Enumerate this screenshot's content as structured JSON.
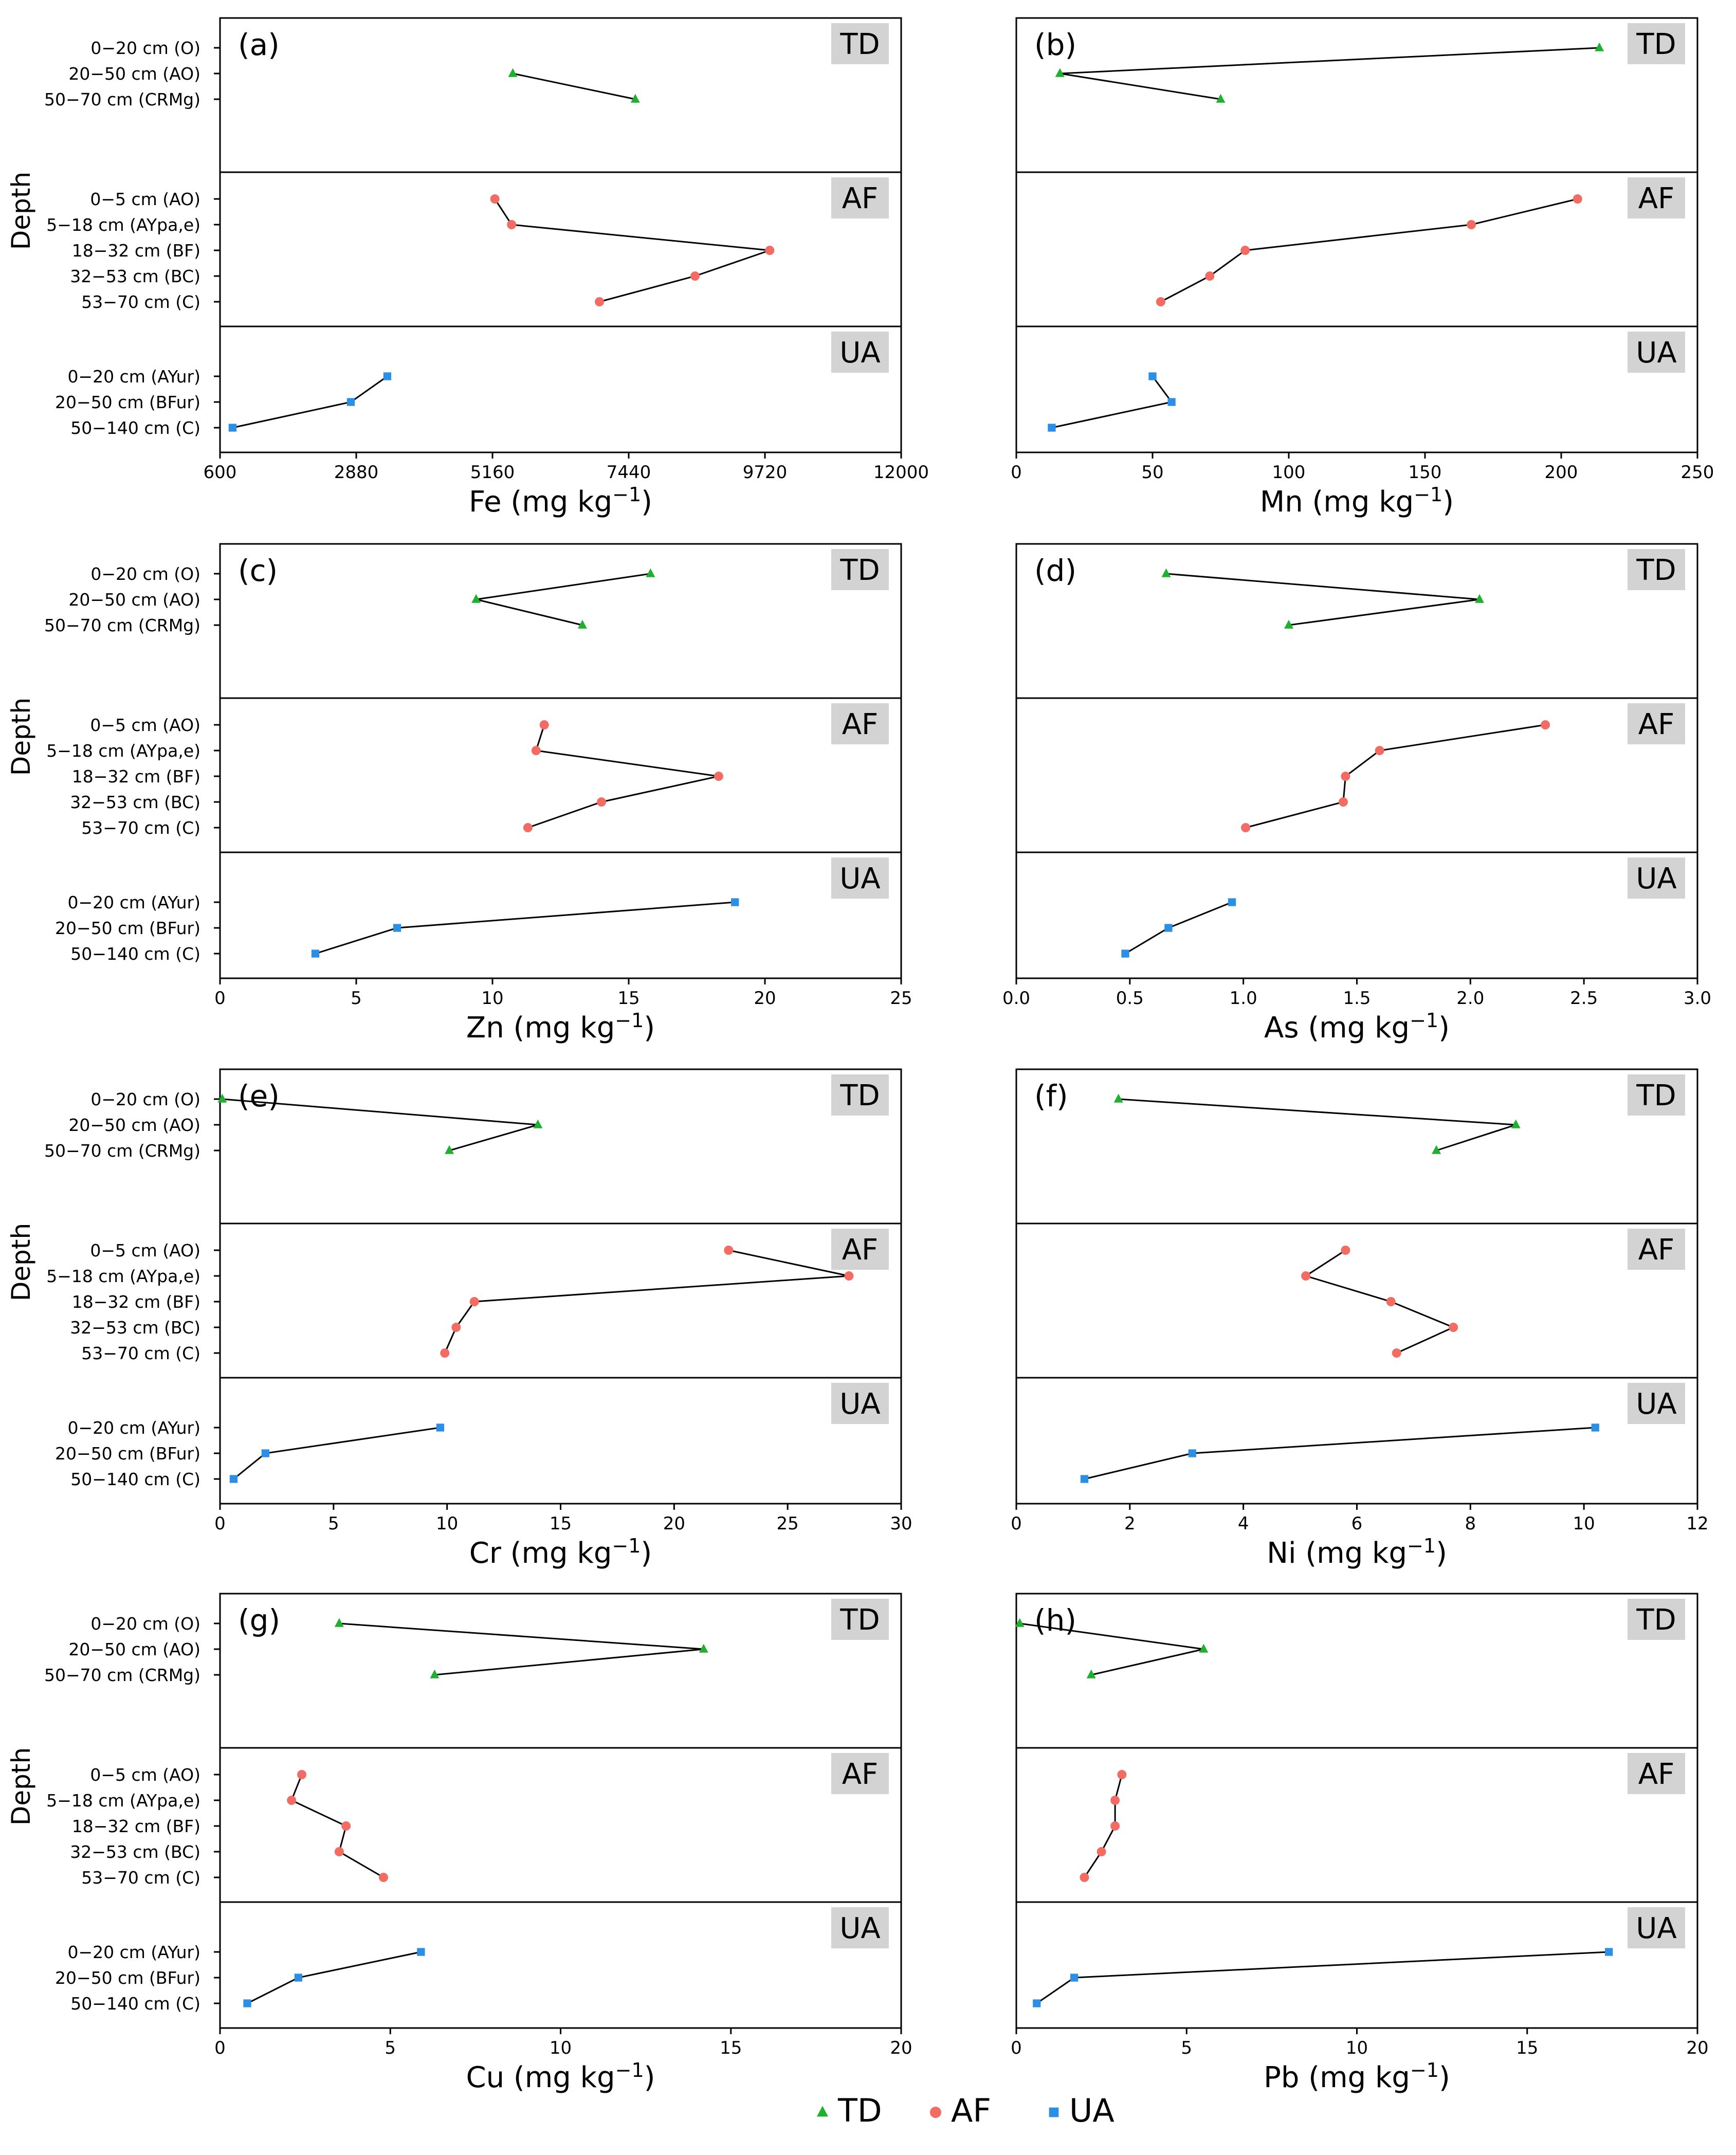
{
  "legend": [
    {
      "label": "TD",
      "marker": "triangle",
      "color": "#1fb030"
    },
    {
      "label": "AF",
      "marker": "circle",
      "color": "#f26c64"
    },
    {
      "label": "UA",
      "marker": "square",
      "color": "#2b8fe6"
    }
  ],
  "colors": {
    "TD": "#1fb030",
    "AF": "#f26c64",
    "UA": "#2b8fe6"
  },
  "groups": [
    {
      "name": "TD",
      "depths": [
        "0−20 cm (O)",
        "20−50 cm (AO)",
        "50−70 cm (CRMg)"
      ]
    },
    {
      "name": "AF",
      "depths": [
        "0−5 cm (AO)",
        "5−18 cm (AYpa,e)",
        "18−32 cm (BF)",
        "32−53 cm (BC)",
        "53−70 cm (C)"
      ]
    },
    {
      "name": "UA",
      "depths": [
        "0−20 cm (AYur)",
        "20−50 cm (BFur)",
        "50−140 cm (C)"
      ]
    }
  ],
  "chart_data": [
    {
      "type": "line",
      "panel": "(a)",
      "element": "Fe",
      "xlabel": "Fe (mg kg⁻¹)",
      "ylabel": "Depth",
      "xlim": [
        600,
        12000
      ],
      "xticks": [
        600,
        2880,
        5160,
        7440,
        9720,
        12000
      ],
      "series": [
        {
          "name": "TD",
          "values": [
            null,
            5500,
            7550
          ]
        },
        {
          "name": "AF",
          "values": [
            5200,
            5480,
            9800,
            8550,
            6950
          ]
        },
        {
          "name": "UA",
          "values": [
            3400,
            2790,
            810
          ]
        }
      ]
    },
    {
      "type": "line",
      "panel": "(b)",
      "element": "Mn",
      "xlabel": "Mn (mg kg⁻¹)",
      "ylabel": "",
      "xlim": [
        0,
        250
      ],
      "xticks": [
        0,
        50,
        100,
        150,
        200,
        250
      ],
      "series": [
        {
          "name": "TD",
          "values": [
            214,
            16,
            75
          ]
        },
        {
          "name": "AF",
          "values": [
            206,
            167,
            84,
            71,
            53
          ]
        },
        {
          "name": "UA",
          "values": [
            50,
            57,
            13
          ]
        }
      ]
    },
    {
      "type": "line",
      "panel": "(c)",
      "element": "Zn",
      "xlabel": "Zn (mg kg⁻¹)",
      "ylabel": "Depth",
      "xlim": [
        0,
        25
      ],
      "xticks": [
        0,
        5,
        10,
        15,
        20,
        25
      ],
      "series": [
        {
          "name": "TD",
          "values": [
            15.8,
            9.4,
            13.3
          ]
        },
        {
          "name": "AF",
          "values": [
            11.9,
            11.6,
            18.3,
            14.0,
            11.3
          ]
        },
        {
          "name": "UA",
          "values": [
            18.9,
            6.5,
            3.5
          ]
        }
      ]
    },
    {
      "type": "line",
      "panel": "(d)",
      "element": "As",
      "xlabel": "As (mg kg⁻¹)",
      "ylabel": "",
      "xlim": [
        0.0,
        3.0
      ],
      "xticks": [
        0.0,
        0.5,
        1.0,
        1.5,
        2.0,
        2.5,
        3.0
      ],
      "series": [
        {
          "name": "TD",
          "values": [
            0.66,
            2.04,
            1.2
          ]
        },
        {
          "name": "AF",
          "values": [
            2.33,
            1.6,
            1.45,
            1.44,
            1.01
          ]
        },
        {
          "name": "UA",
          "values": [
            0.95,
            0.67,
            0.48
          ]
        }
      ]
    },
    {
      "type": "line",
      "panel": "(e)",
      "element": "Cr",
      "xlabel": "Cr (mg kg⁻¹)",
      "ylabel": "Depth",
      "xlim": [
        0,
        30
      ],
      "xticks": [
        0,
        5,
        10,
        15,
        20,
        25,
        30
      ],
      "series": [
        {
          "name": "TD",
          "values": [
            0.1,
            14.0,
            10.1
          ]
        },
        {
          "name": "AF",
          "values": [
            22.4,
            27.7,
            11.2,
            10.4,
            9.9
          ]
        },
        {
          "name": "UA",
          "values": [
            9.7,
            2.0,
            0.6
          ]
        }
      ]
    },
    {
      "type": "line",
      "panel": "(f)",
      "element": "Ni",
      "xlabel": "Ni (mg kg⁻¹)",
      "ylabel": "",
      "xlim": [
        0,
        12
      ],
      "xticks": [
        0,
        2,
        4,
        6,
        8,
        10,
        12
      ],
      "series": [
        {
          "name": "TD",
          "values": [
            1.8,
            8.8,
            7.4
          ]
        },
        {
          "name": "AF",
          "values": [
            5.8,
            5.1,
            6.6,
            7.7,
            6.7
          ]
        },
        {
          "name": "UA",
          "values": [
            10.2,
            3.1,
            1.2
          ]
        }
      ]
    },
    {
      "type": "line",
      "panel": "(g)",
      "element": "Cu",
      "xlabel": "Cu (mg kg⁻¹)",
      "ylabel": "Depth",
      "xlim": [
        0,
        20
      ],
      "xticks": [
        0,
        5,
        10,
        15,
        20
      ],
      "series": [
        {
          "name": "TD",
          "values": [
            3.5,
            14.2,
            6.3
          ]
        },
        {
          "name": "AF",
          "values": [
            2.4,
            2.1,
            3.7,
            3.5,
            4.8
          ]
        },
        {
          "name": "UA",
          "values": [
            5.9,
            2.3,
            0.8
          ]
        }
      ]
    },
    {
      "type": "line",
      "panel": "(h)",
      "element": "Pb",
      "xlabel": "Pb (mg kg⁻¹)",
      "ylabel": "",
      "xlim": [
        0,
        20
      ],
      "xticks": [
        0,
        5,
        10,
        15,
        20
      ],
      "series": [
        {
          "name": "TD",
          "values": [
            0.1,
            5.5,
            2.2
          ]
        },
        {
          "name": "AF",
          "values": [
            3.1,
            2.9,
            2.9,
            2.5,
            2.0
          ]
        },
        {
          "name": "UA",
          "values": [
            17.4,
            1.7,
            0.6
          ]
        }
      ]
    }
  ]
}
